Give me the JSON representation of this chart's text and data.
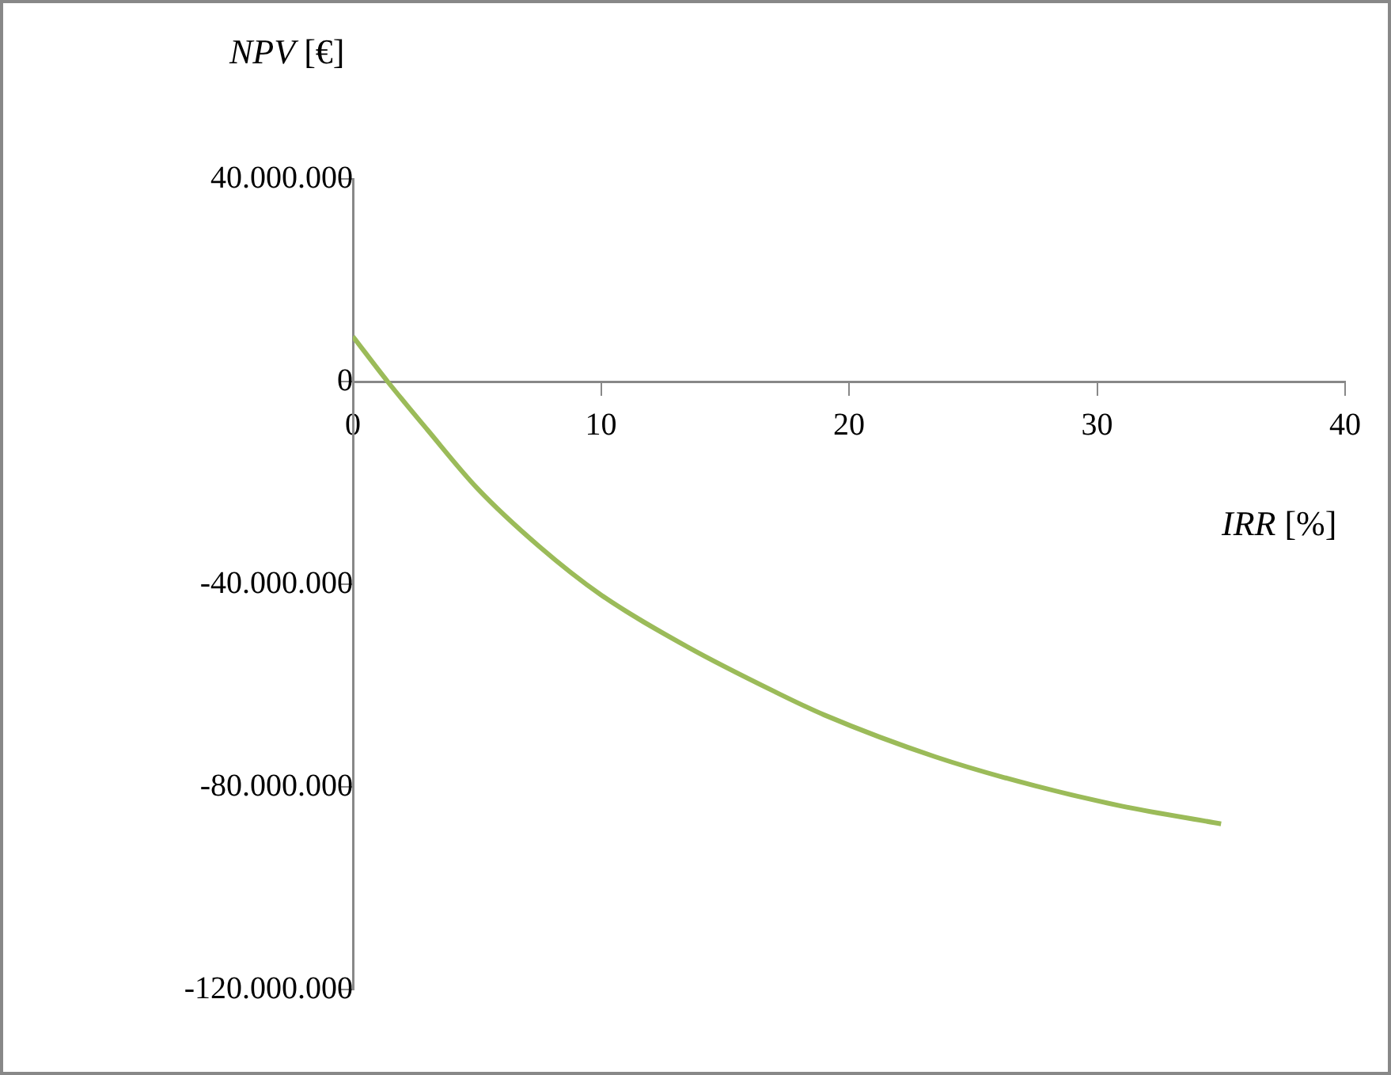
{
  "chart_data": {
    "type": "line",
    "xlabel": "IRR [%]",
    "ylabel": "NPV [€]",
    "x": [
      0,
      1.4,
      3,
      5,
      7.5,
      10,
      13.5,
      17,
      19,
      23.5,
      27.5,
      31,
      35
    ],
    "series": [
      {
        "color": "#9bbb59",
        "values": [
          8900000,
          0,
          -9500000,
          -21000000,
          -32500000,
          -42100000,
          -52400000,
          -61200000,
          -65800000,
          -74100000,
          -79800000,
          -83800000,
          -87300000
        ]
      }
    ],
    "xlim": [
      0,
      40
    ],
    "xticks": [
      0,
      10,
      20,
      30,
      40
    ],
    "ylim": [
      -120000000,
      40000000
    ],
    "yticks": [
      {
        "value": 40000000,
        "label": "40.000.000"
      },
      0,
      {
        "value": -40000000,
        "label": "-40.000.000"
      },
      {
        "value": -80000000,
        "label": "-80.000.000"
      },
      {
        "value": -120000000,
        "label": "-120.000.000"
      }
    ],
    "marker": "none",
    "legend": false
  }
}
